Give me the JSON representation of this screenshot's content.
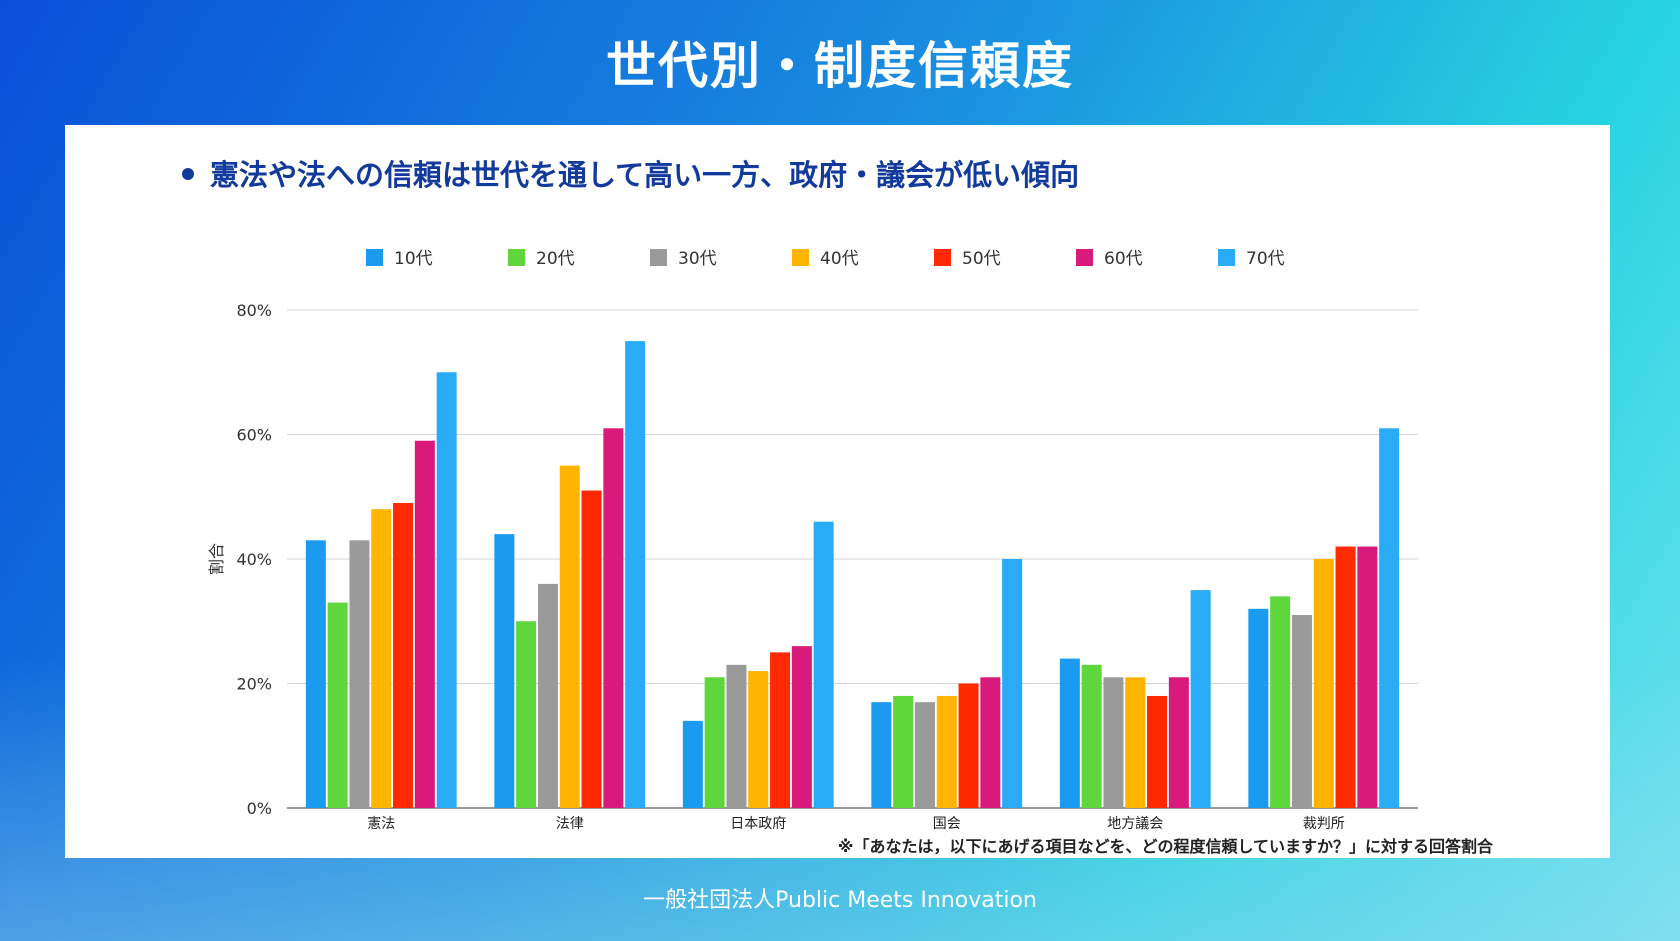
{
  "title": "世代別・制度信頼度",
  "subtitle": "憲法や法への信頼は世代を通して高い一方、政府・議会が低い傾向",
  "footer": "一般社団法人Public Meets Innovation",
  "chart_data": {
    "type": "bar",
    "title": "",
    "xlabel": "",
    "ylabel": "割合",
    "ylim": [
      0,
      80
    ],
    "yticks": [
      0,
      20,
      40,
      60,
      80
    ],
    "ytick_labels": [
      "0%",
      "20%",
      "40%",
      "60%",
      "80%"
    ],
    "categories": [
      "憲法",
      "法律",
      "日本政府",
      "国会",
      "地方議会",
      "裁判所"
    ],
    "series": [
      {
        "name": "10代",
        "color": "#1a9bf0",
        "values": [
          43,
          44,
          14,
          17,
          24,
          32
        ]
      },
      {
        "name": "20代",
        "color": "#5ed63c",
        "values": [
          33,
          30,
          21,
          18,
          23,
          34
        ]
      },
      {
        "name": "30代",
        "color": "#9a9a9a",
        "values": [
          43,
          36,
          23,
          17,
          21,
          31
        ]
      },
      {
        "name": "40代",
        "color": "#ffb400",
        "values": [
          48,
          55,
          22,
          18,
          21,
          40
        ]
      },
      {
        "name": "50代",
        "color": "#ff2a00",
        "values": [
          49,
          51,
          25,
          20,
          18,
          42
        ]
      },
      {
        "name": "60代",
        "color": "#d81b7a",
        "values": [
          59,
          61,
          26,
          21,
          21,
          42
        ]
      },
      {
        "name": "70代",
        "color": "#2aabf7",
        "values": [
          70,
          75,
          46,
          40,
          35,
          61
        ]
      }
    ],
    "legend_position": "top",
    "grid": true,
    "note": "※「あなたは，以下にあげる項目などを、どの程度信頼していますか？」に対する回答割合"
  }
}
